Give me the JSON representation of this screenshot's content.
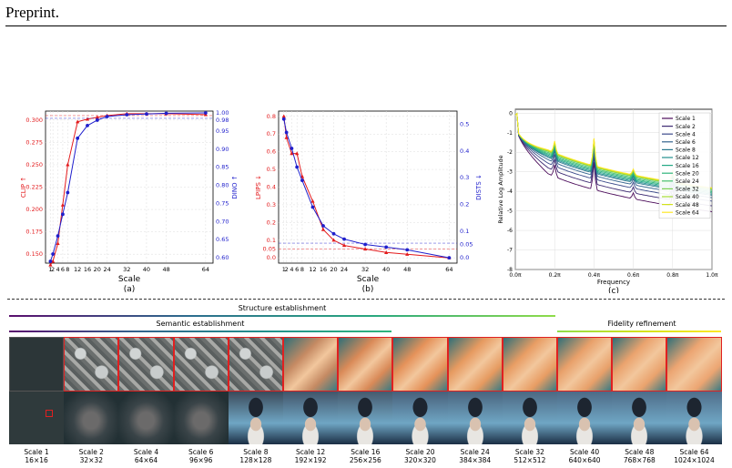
{
  "header": {
    "text": "Preprint."
  },
  "chart_data": [
    {
      "type": "line",
      "panel_label": "(a)",
      "xlabel": "Scale",
      "ylabel_left": "CLIP ↑",
      "ylabel_right": "DINO ↑",
      "x": [
        1,
        2,
        4,
        6,
        8,
        12,
        16,
        20,
        24,
        32,
        40,
        48,
        64
      ],
      "x_ticks": [
        "1",
        "2",
        "4",
        "6",
        "8",
        "12",
        "16",
        "20",
        "24",
        "32",
        "40",
        "48",
        "64"
      ],
      "y_left_ticks": [
        "0.150",
        "0.175",
        "0.200",
        "0.225",
        "0.250",
        "0.275",
        "0.300"
      ],
      "y_right_ticks": [
        "0.60",
        "0.65",
        "0.70",
        "0.75",
        "0.80",
        "0.85",
        "0.90",
        "0.95",
        "0.98",
        "1.00"
      ],
      "ylim_left": [
        0.14,
        0.31
      ],
      "ylim_right": [
        0.585,
        1.005
      ],
      "series": [
        {
          "axis": "left",
          "color": "#e31a1c",
          "marker": "triangle",
          "values": [
            0.138,
            0.142,
            0.162,
            0.205,
            0.25,
            0.298,
            0.301,
            0.303,
            0.305,
            0.307,
            0.307,
            0.307,
            0.306
          ],
          "ref": 0.305
        },
        {
          "axis": "right",
          "color": "#1f1fcc",
          "marker": "circle",
          "values": [
            0.59,
            0.61,
            0.66,
            0.72,
            0.78,
            0.93,
            0.965,
            0.98,
            0.99,
            0.995,
            0.997,
            0.999,
            1.0
          ],
          "ref": 0.985
        }
      ]
    },
    {
      "type": "line",
      "panel_label": "(b)",
      "xlabel": "Scale",
      "ylabel_left": "LPIPS ↓",
      "ylabel_right": "DISTS ↓",
      "x": [
        1,
        2,
        4,
        6,
        8,
        12,
        16,
        20,
        24,
        32,
        40,
        48,
        64
      ],
      "x_ticks": [
        "1",
        "2",
        "4",
        "6",
        "8",
        "12",
        "16",
        "20",
        "24",
        "32",
        "40",
        "48",
        "64"
      ],
      "y_left_ticks": [
        "0.0",
        "0.05",
        "0.1",
        "0.2",
        "0.3",
        "0.4",
        "0.5",
        "0.6",
        "0.7",
        "0.8"
      ],
      "y_right_ticks": [
        "0.0",
        "0.05",
        "0.1",
        "0.2",
        "0.3",
        "0.4",
        "0.5"
      ],
      "ylim_left": [
        -0.03,
        0.83
      ],
      "ylim_right": [
        -0.02,
        0.55
      ],
      "series": [
        {
          "axis": "left",
          "color": "#e31a1c",
          "marker": "triangle",
          "values": [
            0.8,
            0.68,
            0.59,
            0.59,
            0.46,
            0.32,
            0.16,
            0.1,
            0.07,
            0.05,
            0.03,
            0.02,
            0.0
          ],
          "ref": 0.05
        },
        {
          "axis": "right",
          "color": "#1f1fcc",
          "marker": "circle",
          "values": [
            0.52,
            0.47,
            0.41,
            0.34,
            0.29,
            0.19,
            0.12,
            0.09,
            0.07,
            0.05,
            0.04,
            0.03,
            0.0
          ],
          "ref": 0.055
        }
      ]
    },
    {
      "type": "line",
      "panel_label": "(c)",
      "xlabel": "Frequency",
      "ylabel": "Relative Log Amplitude",
      "x_ticks": [
        "0.0π",
        "0.2π",
        "0.4π",
        "0.6π",
        "0.8π",
        "1.0π"
      ],
      "y_ticks": [
        "0",
        "-1",
        "-2",
        "-3",
        "-4",
        "-5",
        "-6",
        "-7",
        "-8"
      ],
      "ylim": [
        -8,
        0.2
      ],
      "legend_position": "top-right",
      "series": [
        {
          "name": "Scale 1",
          "color": "#4b0b5a",
          "offset": -0.7
        },
        {
          "name": "Scale 2",
          "color": "#3d2b73",
          "offset": -0.45
        },
        {
          "name": "Scale 4",
          "color": "#3b4a8a",
          "offset": -0.25
        },
        {
          "name": "Scale 6",
          "color": "#33638d",
          "offset": -0.1
        },
        {
          "name": "Scale 8",
          "color": "#2a788e",
          "offset": 0.0
        },
        {
          "name": "Scale 12",
          "color": "#21908d",
          "offset": 0.05
        },
        {
          "name": "Scale 16",
          "color": "#22a884",
          "offset": 0.1
        },
        {
          "name": "Scale 20",
          "color": "#2fb47c",
          "offset": 0.15
        },
        {
          "name": "Scale 24",
          "color": "#44bf70",
          "offset": 0.2
        },
        {
          "name": "Scale 32",
          "color": "#7ad151",
          "offset": 0.25
        },
        {
          "name": "Scale 40",
          "color": "#a5db36",
          "offset": 0.28
        },
        {
          "name": "Scale 48",
          "color": "#d2e21b",
          "offset": 0.3
        },
        {
          "name": "Scale 64",
          "color": "#fde725",
          "offset": 0.32
        }
      ]
    }
  ],
  "phases": {
    "structure": {
      "label": "Structure establishment"
    },
    "semantic": {
      "label": "Semantic establishment"
    },
    "fidelity": {
      "label": "Fidelity refinement"
    }
  },
  "scales": [
    {
      "name": "Scale 1",
      "res": "16×16"
    },
    {
      "name": "Scale 2",
      "res": "32×32"
    },
    {
      "name": "Scale 4",
      "res": "64×64"
    },
    {
      "name": "Scale 6",
      "res": "96×96"
    },
    {
      "name": "Scale 8",
      "res": "128×128"
    },
    {
      "name": "Scale 12",
      "res": "192×192"
    },
    {
      "name": "Scale 16",
      "res": "256×256"
    },
    {
      "name": "Scale 20",
      "res": "320×320"
    },
    {
      "name": "Scale 24",
      "res": "384×384"
    },
    {
      "name": "Scale 32",
      "res": "512×512"
    },
    {
      "name": "Scale 40",
      "res": "640×640"
    },
    {
      "name": "Scale 48",
      "res": "768×768"
    },
    {
      "name": "Scale 64",
      "res": "1024×1024"
    }
  ],
  "colors": {
    "red": "#e31a1c",
    "blue": "#1f1fcc",
    "tile_border": "#e02020"
  }
}
